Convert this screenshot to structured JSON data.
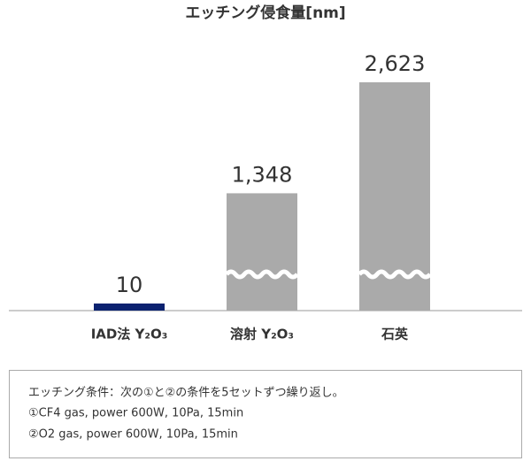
{
  "chart_data": {
    "type": "bar",
    "title": "エッチング侵食量[nm]",
    "categories": [
      "IAD法 Y₂O₃",
      "溶射 Y₂O₃",
      "石英"
    ],
    "values": [
      10,
      1348,
      2623
    ],
    "value_labels": [
      "10",
      "1,348",
      "2,623"
    ],
    "colors": [
      "#0b2270",
      "#aaaaaa",
      "#aaaaaa"
    ],
    "broken": [
      false,
      true,
      true
    ]
  },
  "note": {
    "lines": [
      "エッチング条件：次の①と②の条件を5セットずつ繰り返し。",
      "①CF4 gas, power 600W, 10Pa, 15min",
      "②O2 gas, power 600W, 10Pa, 15min"
    ]
  }
}
